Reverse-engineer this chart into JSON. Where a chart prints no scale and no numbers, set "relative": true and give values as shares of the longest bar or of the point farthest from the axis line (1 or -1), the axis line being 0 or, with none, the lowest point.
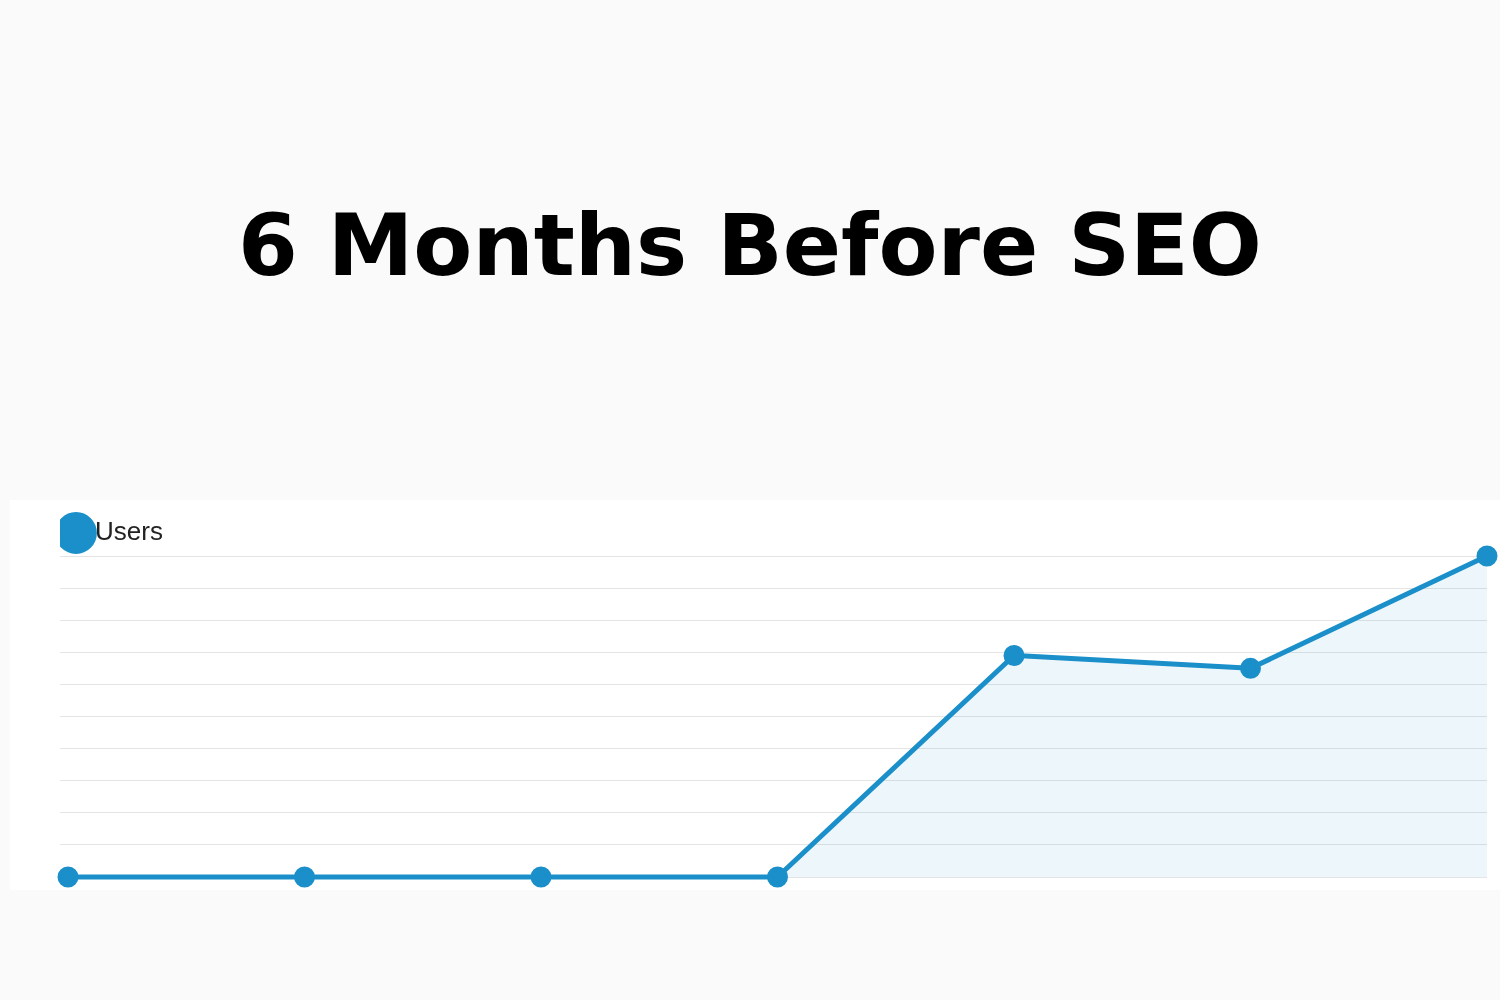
{
  "chart_data": {
    "type": "area",
    "title": "6 Months Before SEO",
    "relative": true,
    "categories": [
      null,
      null,
      null,
      null,
      null,
      null,
      null
    ],
    "series": [
      {
        "name": "Users",
        "color": "#1a8fc9",
        "values": [
          0,
          0,
          0,
          0,
          0.69,
          0.65,
          1
        ]
      }
    ],
    "legend": "top left",
    "grid": "y",
    "marker": "circle",
    "line_style": "solid"
  }
}
